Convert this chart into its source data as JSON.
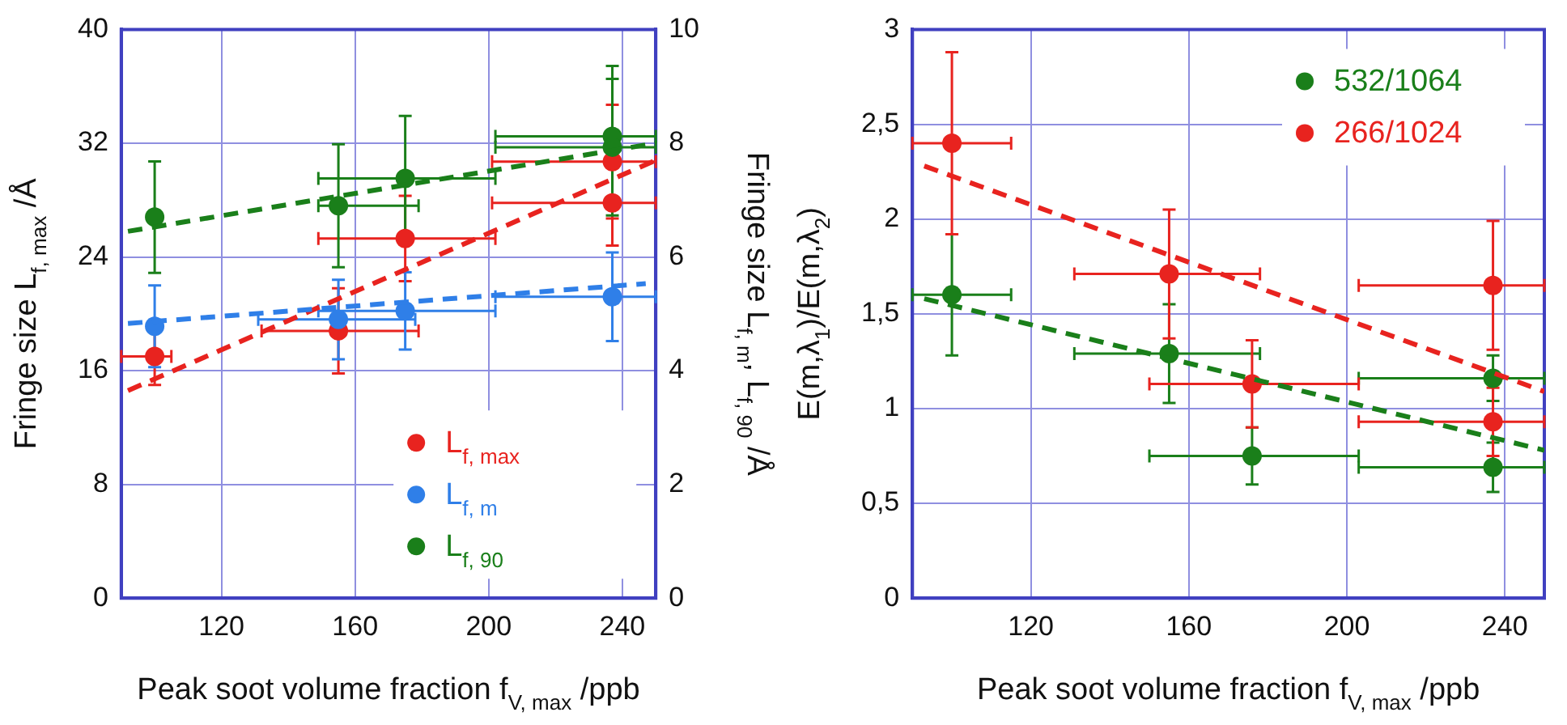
{
  "chart_data": [
    {
      "type": "scatter",
      "xlabel": "Peak soot volume fraction f$_{V, max}$ /ppb",
      "ylabel": "Fringe size L$_{f, max}$ /Å",
      "y2label": "Fringe size L$_{f, m}$, L$_{f, 90}$ /Å",
      "xlim": [
        90,
        250
      ],
      "xticks": [
        120,
        160,
        200,
        240
      ],
      "ylim": [
        0,
        40
      ],
      "yticks": [
        0,
        8,
        16,
        24,
        32,
        40
      ],
      "y2lim": [
        0,
        10
      ],
      "y2ticks": [
        0,
        2,
        4,
        6,
        8,
        10
      ],
      "grid": true,
      "legend": "bottom right",
      "marker": "circle",
      "series": [
        {
          "name": "L$_{f, max}$",
          "color": "#e8231f",
          "x": [
            100,
            155,
            175,
            237,
            237
          ],
          "values": [
            17,
            18.8,
            25.3,
            30.7,
            27.8
          ],
          "errors": [
            2,
            3,
            3,
            4,
            3
          ],
          "xerrors": [
            [
              90,
              105
            ],
            [
              132,
              179
            ],
            [
              149,
              202
            ],
            [
              201,
              250
            ],
            [
              201,
              250
            ]
          ]
        },
        {
          "name": "L$_{f, m}$",
          "color": "#2f7fe8",
          "axis": "y2",
          "x": [
            100,
            155,
            175,
            237
          ],
          "values": [
            4.78,
            4.9,
            5.05,
            5.3
          ],
          "errors": [
            0.72,
            0.7,
            0.68,
            0.78
          ],
          "xerrors": [
            null,
            [
              131,
              178
            ],
            [
              149,
              202
            ],
            [
              202,
              250
            ]
          ]
        },
        {
          "name": "L$_{f, 90}$",
          "color": "#1a7f1a",
          "axis": "y2",
          "x": [
            100,
            155,
            175,
            237,
            237
          ],
          "values": [
            6.7,
            6.9,
            7.38,
            8.12,
            7.93
          ],
          "errors": [
            0.98,
            1.08,
            1.1,
            1.24,
            1.2
          ],
          "xerrors": [
            null,
            [
              149,
              179
            ],
            [
              149,
              202
            ],
            [
              202,
              250
            ],
            [
              202,
              250
            ]
          ]
        },
        {
          "type": "line",
          "color": "#e8231f",
          "line_style": "dashed",
          "marker": "none",
          "x": [
            92,
            250
          ],
          "values": [
            14.6,
            30.8
          ]
        },
        {
          "type": "line",
          "color": "#2f7fe8",
          "axis": "y2",
          "line_style": "dashed",
          "marker": "none",
          "x": [
            92,
            247
          ],
          "values": [
            4.83,
            5.53
          ]
        },
        {
          "type": "line",
          "color": "#1a7f1a",
          "axis": "y2",
          "line_style": "dashed",
          "marker": "none",
          "x": [
            92,
            250
          ],
          "values": [
            6.45,
            8.0
          ]
        }
      ]
    },
    {
      "type": "scatter",
      "xlabel": "Peak soot volume fraction f$_{V, max}$ /ppb",
      "ylabel": "E(m,λ$_{1}$)/E(m,λ$_{2}$)",
      "xlim": [
        90,
        250
      ],
      "xticks": [
        120,
        160,
        200,
        240
      ],
      "ylim": [
        0,
        3
      ],
      "yticks": [
        0,
        {
          "value": 0.5,
          "label": "0,5"
        },
        1,
        {
          "value": 1.5,
          "label": "1,5"
        },
        2,
        {
          "value": 2.5,
          "label": "2,5"
        },
        3
      ],
      "grid": true,
      "legend": "top right",
      "marker": "circle",
      "series": [
        {
          "name": "532/1064",
          "color": "#1a7f1a",
          "x": [
            100,
            155,
            176,
            237,
            237
          ],
          "values": [
            1.6,
            1.29,
            0.75,
            0.69,
            1.16
          ],
          "errors": [
            0.32,
            0.26,
            0.15,
            0.13,
            0.12
          ],
          "xerrors": [
            [
              90,
              115
            ],
            [
              131,
              178
            ],
            [
              150,
              203
            ],
            [
              203,
              250
            ],
            [
              203,
              250
            ]
          ]
        },
        {
          "name": "266/1024",
          "color": "#e8231f",
          "x": [
            100,
            155,
            176,
            237,
            237
          ],
          "values": [
            2.4,
            1.71,
            1.13,
            1.65,
            0.93
          ],
          "errors": [
            0.48,
            0.34,
            0.23,
            0.34,
            0.18
          ],
          "xerrors": [
            [
              90,
              115
            ],
            [
              131,
              178
            ],
            [
              150,
              203
            ],
            [
              203,
              250
            ],
            [
              203,
              250
            ]
          ]
        },
        {
          "type": "line",
          "color": "#e8231f",
          "line_style": "dashed",
          "marker": "none",
          "x": [
            93,
            250
          ],
          "values": [
            2.28,
            1.09
          ]
        },
        {
          "type": "line",
          "color": "#1a7f1a",
          "line_style": "dashed",
          "marker": "none",
          "x": [
            93,
            250
          ],
          "values": [
            1.58,
            0.78
          ]
        }
      ]
    }
  ]
}
